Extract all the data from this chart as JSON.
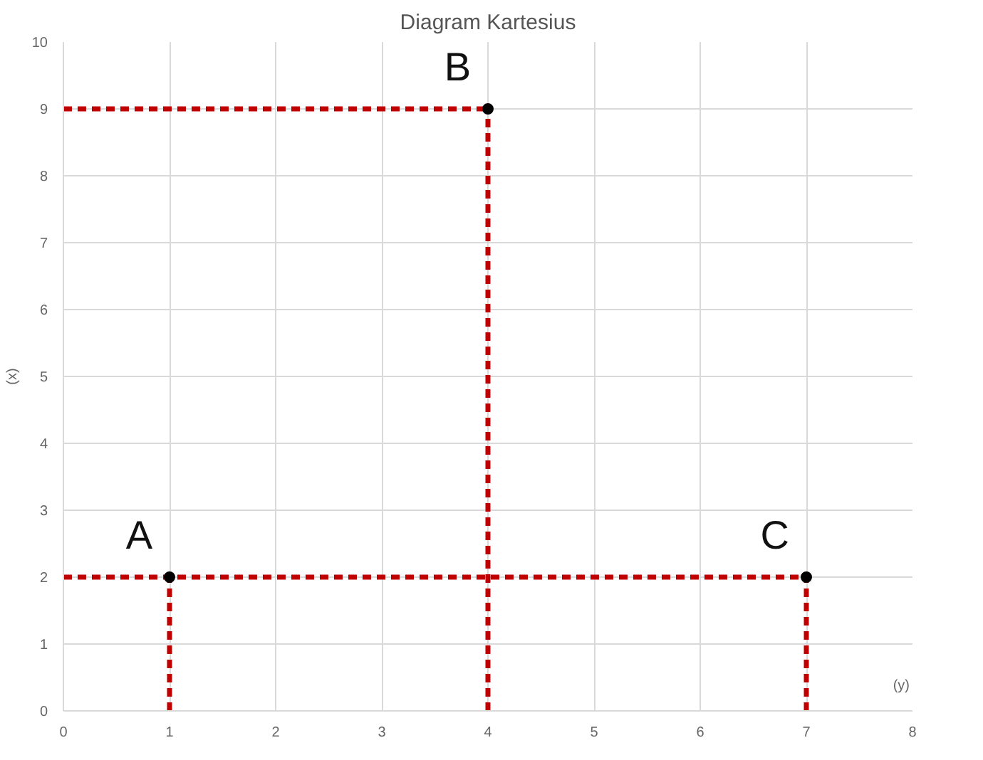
{
  "chart_data": {
    "type": "scatter",
    "title": "Diagram Kartesius",
    "xlabel": "(y)",
    "ylabel": "(x)",
    "xlim": [
      0,
      8
    ],
    "ylim": [
      0,
      10
    ],
    "xticks": [
      0,
      1,
      2,
      3,
      4,
      5,
      6,
      7,
      8
    ],
    "yticks": [
      0,
      1,
      2,
      3,
      4,
      5,
      6,
      7,
      8,
      9,
      10
    ],
    "grid": true,
    "series": [
      {
        "type": "line",
        "color": "#c00000",
        "line_style": "dashed",
        "marker": "none",
        "x": [
          0,
          7
        ],
        "values": [
          2,
          2
        ]
      },
      {
        "type": "line",
        "color": "#c00000",
        "line_style": "dashed",
        "marker": "none",
        "x": [
          1,
          1
        ],
        "values": [
          0,
          2
        ]
      },
      {
        "type": "line",
        "color": "#c00000",
        "line_style": "dashed",
        "marker": "none",
        "x": [
          0,
          4
        ],
        "values": [
          9,
          9
        ]
      },
      {
        "type": "line",
        "color": "#c00000",
        "line_style": "dashed",
        "marker": "none",
        "x": [
          4,
          4
        ],
        "values": [
          0,
          9
        ]
      },
      {
        "type": "line",
        "color": "#c00000",
        "line_style": "dashed",
        "marker": "none",
        "x": [
          7,
          7
        ],
        "values": [
          0,
          2
        ]
      },
      {
        "color": "#000000",
        "marker": "circle",
        "x": [
          1,
          4,
          7
        ],
        "values": [
          2,
          9,
          2
        ]
      }
    ],
    "annotations": [
      {
        "text": "A",
        "x": 1,
        "y": 2
      },
      {
        "text": "B",
        "x": 4,
        "y": 9
      },
      {
        "text": "C",
        "x": 7,
        "y": 2
      }
    ]
  }
}
